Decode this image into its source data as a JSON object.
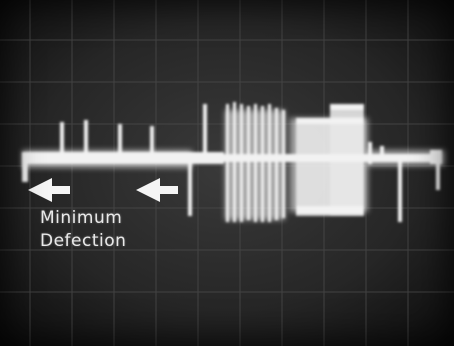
{
  "image": {
    "subject": "oscilloscope-trace-photo",
    "colors": {
      "background": "#1b1b1b",
      "grid": "#4a4a4a",
      "trace": "#f2f2f2",
      "arrow": "#f5f5f5"
    }
  },
  "annotation": {
    "line1": "Minimum",
    "line2": "Defection"
  }
}
